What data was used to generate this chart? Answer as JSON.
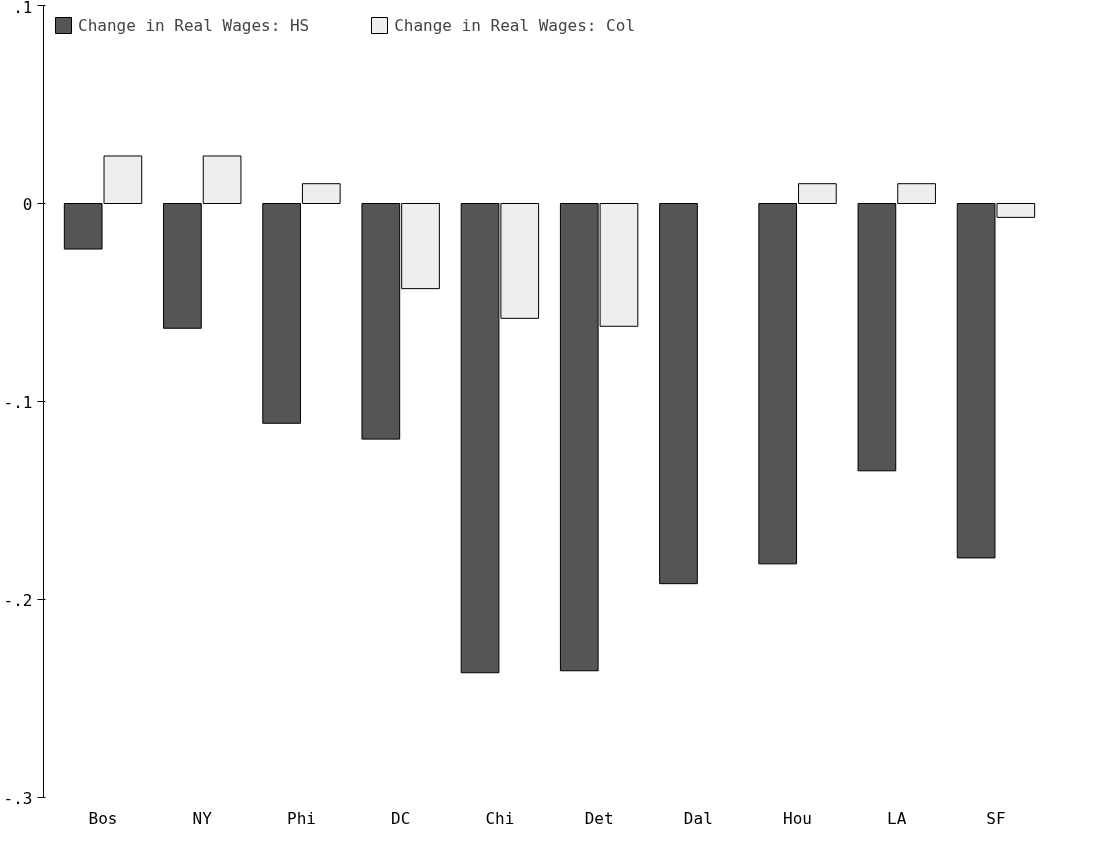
{
  "chart_data": {
    "type": "bar",
    "categories": [
      "Bos",
      "NY",
      "Phi",
      "DC",
      "Chi",
      "Det",
      "Dal",
      "Hou",
      "LA",
      "SF"
    ],
    "series": [
      {
        "name": "Change in Real Wages: HS",
        "color": "#555555",
        "values": [
          -0.023,
          -0.063,
          -0.111,
          -0.119,
          -0.237,
          -0.236,
          -0.192,
          -0.182,
          -0.135,
          -0.179
        ]
      },
      {
        "name": "Change in Real Wages: Col",
        "color": "#eeeeee",
        "values": [
          0.024,
          0.024,
          0.01,
          -0.043,
          -0.058,
          -0.062,
          null,
          0.01,
          0.01,
          -0.007
        ]
      }
    ],
    "ylim": [
      -0.3,
      0.1
    ],
    "yticks": [
      {
        "value": 0.1,
        "label": ".1"
      },
      0,
      {
        "value": -0.1,
        "label": "-.1"
      },
      {
        "value": -0.2,
        "label": "-.2"
      },
      {
        "value": -0.3,
        "label": "-.3"
      }
    ],
    "grid": false,
    "legend": "top left"
  }
}
